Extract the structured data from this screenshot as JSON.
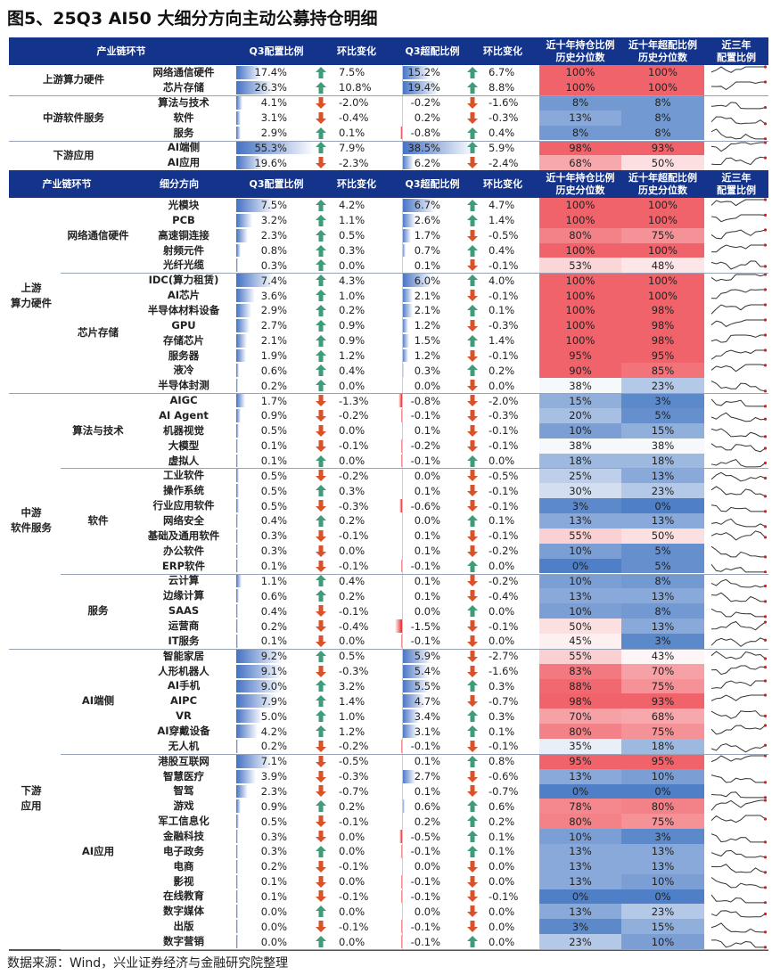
{
  "title": "图5、25Q3 AI50 大细分方向主动公募持仓明细",
  "footer": "数据来源：Wind，兴业证券经济与金融研究院整理",
  "colors": {
    "header": "#14348c",
    "bar": "#4472c4",
    "neg_bar": "#e8262c",
    "up_arrow": "#3f9b78",
    "down_arrow": "#d8522a",
    "heat_low": "#4f7fc6",
    "heat_high": "#f0636a",
    "spark": "#333333",
    "spark_end": "#d02020"
  },
  "top_table": {
    "headers": [
      "产业链环节",
      "Q3配置比例",
      "环比变化",
      "Q3超配比例",
      "环比变化",
      "近十年持仓比例\n历史分位数",
      "近十年超配比例\n历史分位数",
      "近三年\n配置比例"
    ],
    "groups": [
      {
        "label": "上游算力硬件",
        "rows": 2
      },
      {
        "label": "中游软件服务",
        "rows": 3
      },
      {
        "label": "下游应用",
        "rows": 2
      }
    ],
    "rows": [
      [
        "网络通信硬件",
        "17.4%",
        "up",
        "7.5%",
        "15.2%",
        "up",
        "6.7%",
        "100%",
        "100%"
      ],
      [
        "芯片存储",
        "26.3%",
        "up",
        "10.8%",
        "19.4%",
        "up",
        "8.8%",
        "100%",
        "100%"
      ],
      [
        "算法与技术",
        "4.1%",
        "down",
        "-2.0%",
        "-0.2%",
        "down",
        "-1.6%",
        "8%",
        "8%"
      ],
      [
        "软件",
        "3.1%",
        "down",
        "-0.4%",
        "0.2%",
        "down",
        "-0.3%",
        "13%",
        "8%"
      ],
      [
        "服务",
        "2.9%",
        "up",
        "0.1%",
        "-0.8%",
        "up",
        "0.4%",
        "8%",
        "8%"
      ],
      [
        "AI端侧",
        "55.3%",
        "up",
        "7.9%",
        "38.5%",
        "up",
        "5.9%",
        "98%",
        "93%"
      ],
      [
        "AI应用",
        "19.6%",
        "down",
        "-2.3%",
        "6.2%",
        "down",
        "-2.4%",
        "68%",
        "50%"
      ]
    ]
  },
  "bottom_table": {
    "headers": [
      "产业链环节",
      "细分方向",
      "Q3配置比例",
      "环比变化",
      "Q3超配比例",
      "环比变化",
      "近十年持仓比例\n历史分位数",
      "近十年超配比例\n历史分位数",
      "近三年\n配置比例"
    ],
    "groups": [
      {
        "label": "上游\n算力硬件",
        "rows": 13
      },
      {
        "label": "中游\n软件服务",
        "rows": 17
      },
      {
        "label": "下游\n应用",
        "rows": 20
      }
    ],
    "subgroups": [
      {
        "label": "网络通信硬件",
        "rows": 5
      },
      {
        "label": "芯片存储",
        "rows": 8
      },
      {
        "label": "算法与技术",
        "rows": 5
      },
      {
        "label": "软件",
        "rows": 7
      },
      {
        "label": "服务",
        "rows": 5
      },
      {
        "label": "AI端侧",
        "rows": 7
      },
      {
        "label": "AI应用",
        "rows": 13
      }
    ],
    "rows": [
      [
        "光模块",
        "7.5%",
        "up",
        "4.2%",
        "6.7%",
        "up",
        "4.7%",
        "100%",
        "100%"
      ],
      [
        "PCB",
        "3.2%",
        "up",
        "1.1%",
        "2.6%",
        "up",
        "1.4%",
        "100%",
        "100%"
      ],
      [
        "高速铜连接",
        "2.3%",
        "up",
        "0.5%",
        "1.7%",
        "down",
        "-0.5%",
        "80%",
        "75%"
      ],
      [
        "射频元件",
        "0.8%",
        "up",
        "0.3%",
        "0.7%",
        "up",
        "0.4%",
        "100%",
        "100%"
      ],
      [
        "光纤光缆",
        "0.3%",
        "up",
        "0.0%",
        "0.1%",
        "down",
        "-0.1%",
        "53%",
        "48%"
      ],
      [
        "IDC(算力租赁)",
        "7.4%",
        "up",
        "4.3%",
        "6.0%",
        "up",
        "4.0%",
        "100%",
        "100%"
      ],
      [
        "AI芯片",
        "3.6%",
        "up",
        "1.0%",
        "2.1%",
        "down",
        "-0.1%",
        "100%",
        "100%"
      ],
      [
        "半导体材料设备",
        "2.9%",
        "up",
        "0.2%",
        "2.1%",
        "up",
        "0.1%",
        "100%",
        "98%"
      ],
      [
        "GPU",
        "2.7%",
        "up",
        "0.9%",
        "1.2%",
        "down",
        "-0.3%",
        "100%",
        "98%"
      ],
      [
        "存储芯片",
        "2.1%",
        "up",
        "0.9%",
        "1.5%",
        "up",
        "1.4%",
        "100%",
        "98%"
      ],
      [
        "服务器",
        "1.9%",
        "up",
        "1.2%",
        "1.2%",
        "down",
        "-0.1%",
        "95%",
        "95%"
      ],
      [
        "液冷",
        "0.6%",
        "up",
        "0.4%",
        "0.3%",
        "up",
        "0.2%",
        "90%",
        "85%"
      ],
      [
        "半导体封测",
        "0.2%",
        "up",
        "0.0%",
        "0.0%",
        "down",
        "0.0%",
        "38%",
        "23%"
      ],
      [
        "AIGC",
        "1.7%",
        "down",
        "-1.3%",
        "-0.8%",
        "down",
        "-2.0%",
        "15%",
        "3%"
      ],
      [
        "AI Agent",
        "0.9%",
        "down",
        "-0.2%",
        "-0.1%",
        "down",
        "-0.3%",
        "20%",
        "5%"
      ],
      [
        "机器视觉",
        "0.5%",
        "down",
        "0.0%",
        "0.1%",
        "down",
        "-0.1%",
        "10%",
        "15%"
      ],
      [
        "大模型",
        "0.1%",
        "down",
        "-0.1%",
        "-0.2%",
        "down",
        "-0.1%",
        "38%",
        "38%"
      ],
      [
        "虚拟人",
        "0.1%",
        "up",
        "0.0%",
        "-0.1%",
        "up",
        "0.0%",
        "18%",
        "18%"
      ],
      [
        "工业软件",
        "0.5%",
        "down",
        "-0.2%",
        "0.0%",
        "down",
        "-0.5%",
        "25%",
        "13%"
      ],
      [
        "操作系统",
        "0.5%",
        "up",
        "0.3%",
        "0.1%",
        "down",
        "-0.1%",
        "30%",
        "23%"
      ],
      [
        "行业应用软件",
        "0.5%",
        "down",
        "-0.3%",
        "-0.6%",
        "down",
        "-0.1%",
        "3%",
        "0%"
      ],
      [
        "网络安全",
        "0.4%",
        "up",
        "0.2%",
        "0.0%",
        "up",
        "0.1%",
        "13%",
        "13%"
      ],
      [
        "基础及通用软件",
        "0.3%",
        "down",
        "-0.1%",
        "0.1%",
        "down",
        "-0.1%",
        "55%",
        "50%"
      ],
      [
        "办公软件",
        "0.3%",
        "down",
        "0.0%",
        "0.1%",
        "down",
        "-0.2%",
        "10%",
        "5%"
      ],
      [
        "ERP软件",
        "0.1%",
        "down",
        "-0.1%",
        "-0.1%",
        "up",
        "0.0%",
        "0%",
        "5%"
      ],
      [
        "云计算",
        "1.1%",
        "up",
        "0.4%",
        "0.1%",
        "down",
        "-0.2%",
        "10%",
        "8%"
      ],
      [
        "边缘计算",
        "0.6%",
        "up",
        "0.2%",
        "0.1%",
        "down",
        "-0.4%",
        "13%",
        "13%"
      ],
      [
        "SAAS",
        "0.4%",
        "down",
        "-0.1%",
        "0.0%",
        "up",
        "0.0%",
        "10%",
        "8%"
      ],
      [
        "运营商",
        "0.2%",
        "down",
        "-0.4%",
        "-1.5%",
        "down",
        "-0.1%",
        "50%",
        "13%"
      ],
      [
        "IT服务",
        "0.1%",
        "down",
        "0.0%",
        "-0.1%",
        "down",
        "0.0%",
        "45%",
        "3%"
      ],
      [
        "智能家居",
        "9.2%",
        "up",
        "0.5%",
        "5.9%",
        "down",
        "-2.7%",
        "55%",
        "43%"
      ],
      [
        "人形机器人",
        "9.1%",
        "down",
        "-0.3%",
        "5.4%",
        "down",
        "-1.6%",
        "83%",
        "70%"
      ],
      [
        "AI手机",
        "9.0%",
        "up",
        "3.2%",
        "5.5%",
        "up",
        "0.3%",
        "88%",
        "75%"
      ],
      [
        "AIPC",
        "7.9%",
        "up",
        "1.4%",
        "4.7%",
        "down",
        "-0.7%",
        "98%",
        "93%"
      ],
      [
        "VR",
        "5.0%",
        "up",
        "1.0%",
        "3.4%",
        "up",
        "0.3%",
        "70%",
        "68%"
      ],
      [
        "AI穿戴设备",
        "4.2%",
        "up",
        "1.2%",
        "3.1%",
        "up",
        "0.1%",
        "80%",
        "75%"
      ],
      [
        "无人机",
        "0.2%",
        "down",
        "-0.2%",
        "-0.1%",
        "down",
        "-0.1%",
        "35%",
        "18%"
      ],
      [
        "港股互联网",
        "7.1%",
        "down",
        "-0.5%",
        "0.1%",
        "up",
        "0.8%",
        "95%",
        "95%"
      ],
      [
        "智慧医疗",
        "3.9%",
        "down",
        "-0.3%",
        "2.7%",
        "down",
        "-0.6%",
        "13%",
        "10%"
      ],
      [
        "智驾",
        "2.3%",
        "down",
        "-0.7%",
        "0.1%",
        "down",
        "-0.7%",
        "0%",
        "0%"
      ],
      [
        "游戏",
        "0.9%",
        "up",
        "0.2%",
        "0.6%",
        "up",
        "0.6%",
        "78%",
        "80%"
      ],
      [
        "军工信息化",
        "0.5%",
        "down",
        "-0.1%",
        "0.2%",
        "up",
        "0.2%",
        "80%",
        "75%"
      ],
      [
        "金融科技",
        "0.3%",
        "down",
        "0.0%",
        "-0.5%",
        "up",
        "0.1%",
        "10%",
        "3%"
      ],
      [
        "电子政务",
        "0.3%",
        "up",
        "0.0%",
        "-0.1%",
        "up",
        "0.1%",
        "13%",
        "13%"
      ],
      [
        "电商",
        "0.2%",
        "down",
        "-0.1%",
        "0.0%",
        "down",
        "0.0%",
        "13%",
        "13%"
      ],
      [
        "影视",
        "0.1%",
        "down",
        "0.0%",
        "-0.1%",
        "down",
        "0.0%",
        "13%",
        "10%"
      ],
      [
        "在线教育",
        "0.1%",
        "down",
        "-0.1%",
        "-0.1%",
        "down",
        "-0.1%",
        "0%",
        "0%"
      ],
      [
        "数字媒体",
        "0.0%",
        "up",
        "0.0%",
        "0.0%",
        "down",
        "0.0%",
        "13%",
        "23%"
      ],
      [
        "出版",
        "0.0%",
        "down",
        "-0.1%",
        "-0.1%",
        "down",
        "0.0%",
        "3%",
        "15%"
      ],
      [
        "数字营销",
        "0.0%",
        "up",
        "0.0%",
        "-0.1%",
        "up",
        "0.0%",
        "23%",
        "10%"
      ]
    ]
  },
  "chart_data": {
    "type": "table",
    "columns": [
      "产业链环节",
      "细分方向",
      "Q3配置比例",
      "环比变化",
      "Q3超配比例",
      "环比变化",
      "近十年持仓比例历史分位数",
      "近十年超配比例历史分位数",
      "近三年配置比例"
    ],
    "note_rows": "see top_table.rows and bottom_table.rows"
  }
}
